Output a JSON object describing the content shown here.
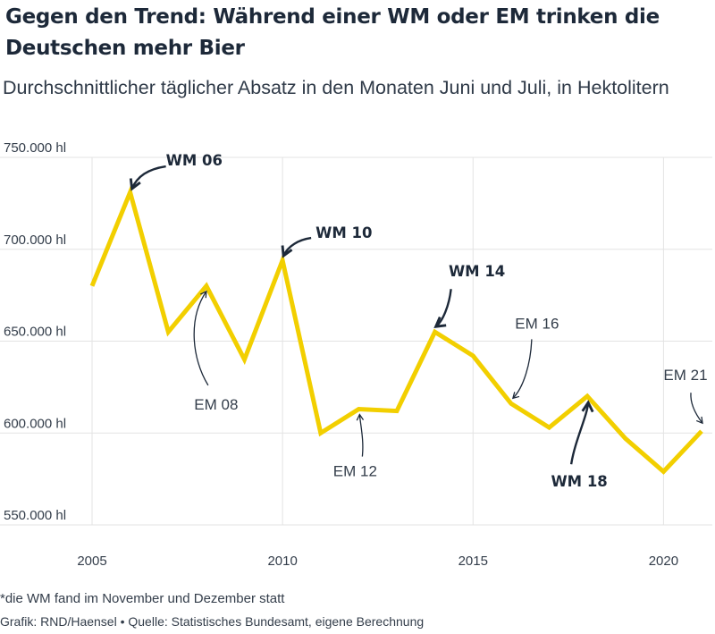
{
  "header": {
    "title": "Gegen den Trend: Während einer WM oder EM trinken die Deutschen mehr Bier",
    "subtitle": "Durchschnittlicher täglicher Absatz in den Monaten Juni und Juli, in Hektolitern"
  },
  "footer": {
    "footnote": "*die WM fand im November und Dezember statt",
    "source": "Grafik: RND/Haensel • Quelle: Statistisches Bundesamt, eigene Berechnung"
  },
  "colors": {
    "line": "#f2cf00",
    "grid": "#e3e3e3",
    "text": "#333d4a",
    "arrow": "#1d2939"
  },
  "chart_data": {
    "type": "line",
    "title": "Gegen den Trend: Während einer WM oder EM trinken die Deutschen mehr Bier",
    "subtitle": "Durchschnittlicher täglicher Absatz in den Monaten Juni und Juli, in Hektolitern",
    "x": [
      2005,
      2006,
      2007,
      2008,
      2009,
      2010,
      2011,
      2012,
      2013,
      2014,
      2015,
      2016,
      2017,
      2018,
      2019,
      2020,
      2021
    ],
    "series": [
      {
        "values": [
          680000,
          731000,
          655000,
          680000,
          640000,
          694000,
          600000,
          613000,
          612000,
          655000,
          642000,
          616000,
          603000,
          620000,
          597000,
          579000,
          601000
        ]
      }
    ],
    "xlim": [
      2005,
      2021
    ],
    "ylim": [
      550000,
      750000
    ],
    "x_ticks": [
      2005,
      2010,
      2015,
      2020
    ],
    "x_tick_labels": [
      "2005",
      "2010",
      "2015",
      "2020"
    ],
    "y_ticks": [
      550000,
      600000,
      650000,
      700000,
      750000
    ],
    "y_tick_labels": [
      "550.000 hl",
      "600.000 hl",
      "650.000 hl",
      "700.000 hl",
      "750.000 hl"
    ],
    "grid": true,
    "annotations": [
      {
        "label": "WM 06",
        "x": 2006,
        "bold": true
      },
      {
        "label": "EM 08",
        "x": 2008,
        "bold": false
      },
      {
        "label": "WM 10",
        "x": 2010,
        "bold": true
      },
      {
        "label": "EM 12",
        "x": 2012,
        "bold": false
      },
      {
        "label": "WM 14",
        "x": 2014,
        "bold": true
      },
      {
        "label": "EM 16",
        "x": 2016,
        "bold": false
      },
      {
        "label": "WM 18",
        "x": 2018,
        "bold": true
      },
      {
        "label": "EM 21",
        "x": 2021,
        "bold": false
      }
    ]
  }
}
